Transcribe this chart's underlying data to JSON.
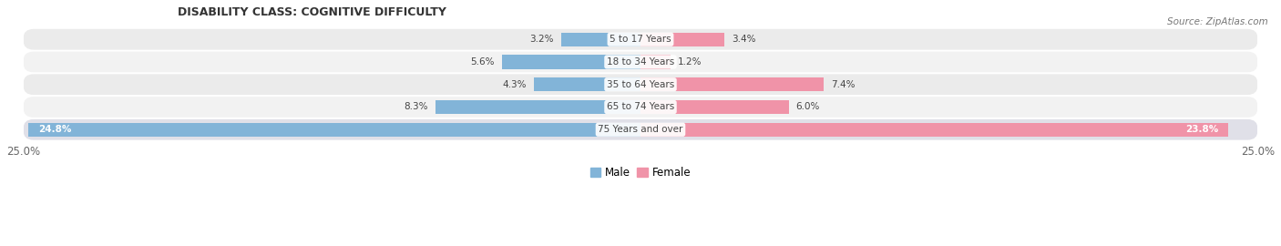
{
  "title": "DISABILITY CLASS: COGNITIVE DIFFICULTY",
  "source": "Source: ZipAtlas.com",
  "categories": [
    "5 to 17 Years",
    "18 to 34 Years",
    "35 to 64 Years",
    "65 to 74 Years",
    "75 Years and over"
  ],
  "male_values": [
    3.2,
    5.6,
    4.3,
    8.3,
    24.8
  ],
  "female_values": [
    3.4,
    1.2,
    7.4,
    6.0,
    23.8
  ],
  "max_value": 25.0,
  "male_color": "#82b4d8",
  "female_color": "#f093a8",
  "row_bg_colors": [
    "#ebebeb",
    "#f2f2f2",
    "#ebebeb",
    "#f2f2f2",
    "#e0e0e8"
  ],
  "label_color": "#444444",
  "title_color": "#333333",
  "axis_label_color": "#666666",
  "legend_male_color": "#82b4d8",
  "legend_female_color": "#f093a8"
}
